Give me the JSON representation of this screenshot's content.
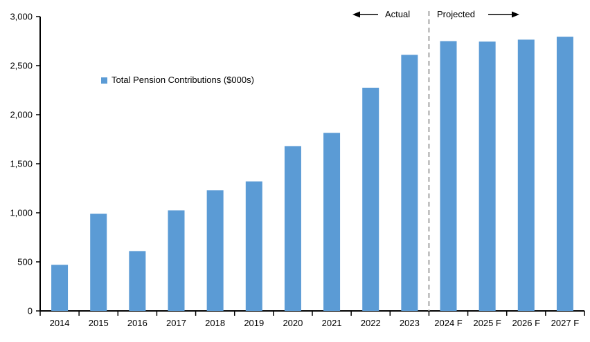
{
  "chart_data": {
    "type": "bar",
    "legend": "Total Pension Contributions ($000s)",
    "legend_position": "upper-left-inside",
    "categories": [
      "2014",
      "2015",
      "2016",
      "2017",
      "2018",
      "2019",
      "2020",
      "2021",
      "2022",
      "2023",
      "2024 F",
      "2025 F",
      "2026 F",
      "2027 F"
    ],
    "values": [
      470,
      990,
      610,
      1025,
      1230,
      1320,
      1680,
      1815,
      2275,
      2610,
      2750,
      2745,
      2765,
      2795
    ],
    "xlabel": "",
    "ylabel": "",
    "ylim": [
      0,
      3000
    ],
    "ytick_step": 500,
    "ytick_labels": [
      "0",
      "500",
      "1,000",
      "1,500",
      "2,000",
      "2,500",
      "3,000"
    ],
    "grid": false,
    "bar_color": "#5B9BD5",
    "axis_color": "#000000",
    "divider": {
      "style": "dashed",
      "color": "#A6A6A6",
      "after_index": 9,
      "meaning": "separates Actual from Projected bars"
    },
    "annotations": {
      "actual_label": "Actual",
      "projected_label": "Projected",
      "actual_arrow_icon": "arrow-left",
      "projected_arrow_icon": "arrow-right"
    }
  }
}
